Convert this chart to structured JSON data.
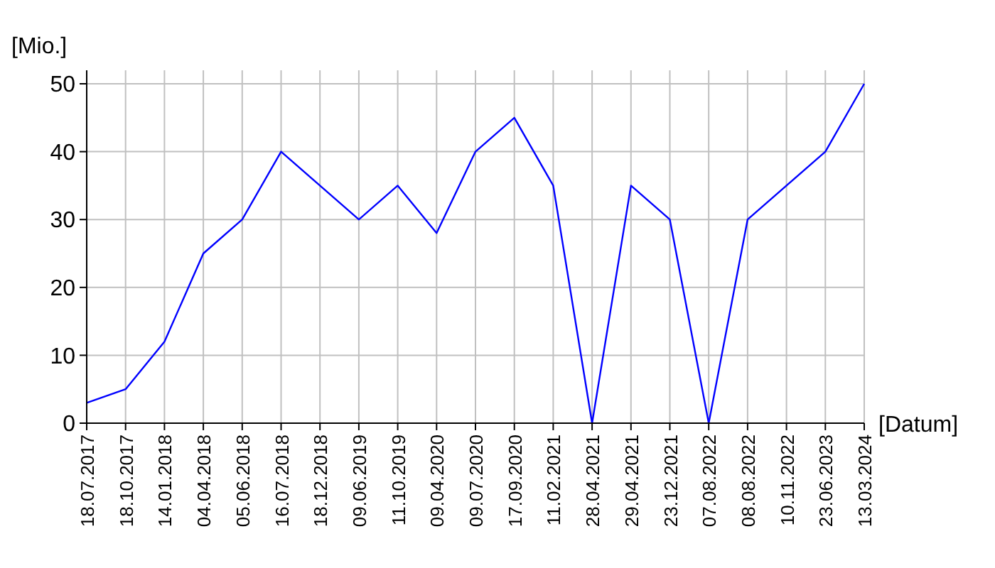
{
  "chart_data": {
    "type": "line",
    "xlabel": "[Datum]",
    "ylabel": "[Mio.]",
    "categories": [
      "18.07.2017",
      "18.10.2017",
      "14.01.2018",
      "04.04.2018",
      "05.06.2018",
      "16.07.2018",
      "18.12.2018",
      "09.06.2019",
      "11.10.2019",
      "09.04.2020",
      "09.07.2020",
      "17.09.2020",
      "11.02.2021",
      "28.04.2021",
      "29.04.2021",
      "23.12.2021",
      "07.08.2022",
      "08.08.2022",
      "10.11.2022",
      "23.06.2023",
      "13.03.2024"
    ],
    "series": [
      {
        "color": "#0000ff",
        "values": [
          3,
          5,
          12,
          25,
          30,
          40,
          35,
          30,
          35,
          28,
          40,
          45,
          35,
          0,
          35,
          30,
          0,
          30,
          35,
          40,
          50
        ]
      }
    ],
    "ylim": [
      0,
      52
    ],
    "yticks": [
      0,
      10,
      20,
      30,
      40,
      50
    ],
    "grid": true,
    "marker": "none",
    "line_style": "solid"
  }
}
